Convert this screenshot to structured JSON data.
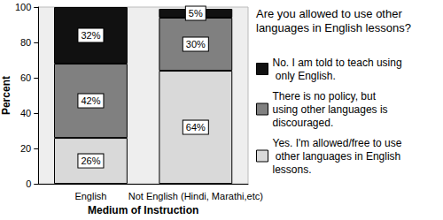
{
  "chart_data": {
    "type": "bar",
    "legend_title": "Are you allowed to use other languages in English lessons?",
    "x_label": "Medium of Instruction",
    "y_label": "Percent",
    "categories": [
      "English",
      "Not English (Hindi, Marathi,etc)"
    ],
    "series": [
      {
        "name": "Yes. I'm allowed/free to use other languages in English lessons.",
        "color": "#d9d9d9",
        "values": [
          26,
          64
        ],
        "value_labels": [
          "26%",
          "64%"
        ]
      },
      {
        "name": "There is no policy, but using other languages is discouraged.",
        "color": "#808080",
        "values": [
          42,
          30
        ],
        "value_labels": [
          "42%",
          "30%"
        ]
      },
      {
        "name": "No. I am told to teach using only English.",
        "color": "#111111",
        "values": [
          32,
          5
        ],
        "value_labels": [
          "32%",
          "5%"
        ]
      }
    ],
    "ylim": [
      0,
      100
    ],
    "yticks": [
      0,
      20,
      40,
      60,
      80,
      100
    ],
    "stacked": true,
    "data_labels": true,
    "legend": "right",
    "grid": false
  }
}
